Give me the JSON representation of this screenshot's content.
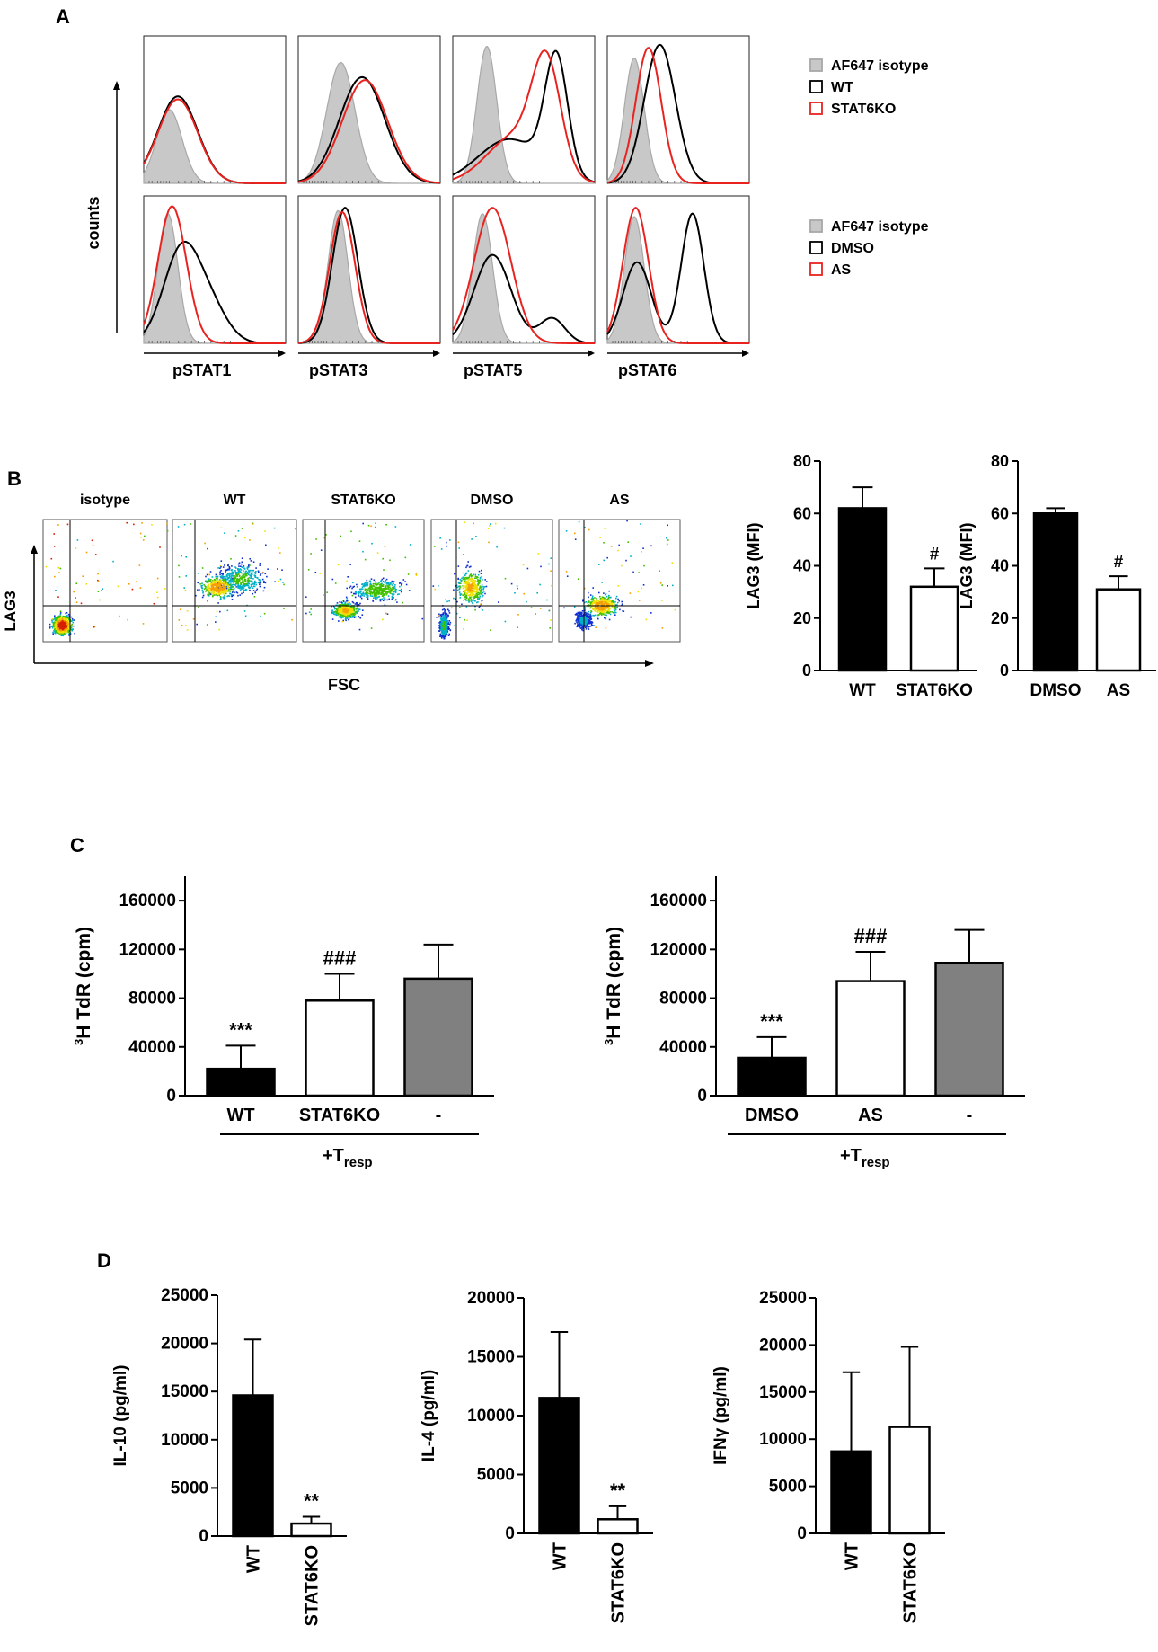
{
  "panel_letters": [
    "A",
    "B",
    "C",
    "D"
  ],
  "colors": {
    "isotype_fill": "#c8c8c8",
    "isotype_line": "#a8a8a8",
    "black": "#000000",
    "red": "#e8231f",
    "gray_bar": "#808080"
  },
  "panelA": {
    "y_label": "counts",
    "x_labels": [
      "pSTAT1",
      "pSTAT3",
      "pSTAT5",
      "pSTAT6"
    ],
    "legend_top": [
      "AF647 isotype",
      "WT",
      "STAT6KO"
    ],
    "legend_bottom": [
      "AF647 isotype",
      "DMSO",
      "AS"
    ],
    "histograms": [
      [
        {
          "iso": [
            0.18,
            0.5,
            0.09
          ],
          "black": [
            0.24,
            0.59,
            0.14
          ],
          "red": [
            0.24,
            0.57,
            0.14
          ]
        },
        {
          "iso": [
            0.3,
            0.82,
            0.1
          ],
          "black": [
            0.45,
            0.72,
            0.16
          ],
          "red": [
            0.47,
            0.7,
            0.16
          ]
        },
        {
          "iso": [
            0.24,
            0.93,
            0.07
          ],
          "black": [
            0.73,
            0.8,
            0.08,
            0.4,
            0.3,
            0.22
          ],
          "red": [
            0.66,
            0.72,
            0.1,
            0.44,
            0.32,
            0.2
          ]
        },
        {
          "iso": [
            0.19,
            0.85,
            0.07
          ],
          "black": [
            0.37,
            0.94,
            0.11
          ],
          "red": [
            0.29,
            0.92,
            0.09
          ]
        }
      ],
      [
        {
          "iso": [
            0.17,
            0.88,
            0.07
          ],
          "black": [
            0.27,
            0.64,
            0.13,
            0.48,
            0.2,
            0.12
          ],
          "red": [
            0.2,
            0.93,
            0.1
          ]
        },
        {
          "iso": [
            0.28,
            0.9,
            0.07
          ],
          "black": [
            0.33,
            0.92,
            0.09
          ],
          "red": [
            0.31,
            0.89,
            0.09
          ]
        },
        {
          "iso": [
            0.21,
            0.88,
            0.07
          ],
          "black": [
            0.28,
            0.6,
            0.13,
            0.7,
            0.17,
            0.09
          ],
          "red": [
            0.28,
            0.92,
            0.13
          ]
        },
        {
          "iso": [
            0.19,
            0.86,
            0.07
          ],
          "black": [
            0.21,
            0.55,
            0.1,
            0.6,
            0.88,
            0.08
          ],
          "red": [
            0.2,
            0.92,
            0.09
          ]
        }
      ]
    ]
  },
  "panelB": {
    "dot_titles": [
      "isotype",
      "WT",
      "STAT6KO",
      "DMSO",
      "AS"
    ],
    "y_label": "LAG3",
    "x_label": "FSC"
  },
  "chart_data": [
    {
      "type": "bar",
      "panel": "B",
      "categories": [
        "WT",
        "STAT6KO"
      ],
      "values": [
        62,
        32
      ],
      "errors": [
        8,
        7
      ],
      "annotations": [
        "",
        "#"
      ],
      "ylabel": "LAG3 (MFI)",
      "ylim": [
        0,
        80
      ],
      "yticks": [
        "0",
        "20",
        "40",
        "60",
        "80"
      ]
    },
    {
      "type": "bar",
      "panel": "B",
      "categories": [
        "DMSO",
        "AS"
      ],
      "values": [
        60,
        31
      ],
      "errors": [
        2,
        5
      ],
      "annotations": [
        "",
        "#"
      ],
      "ylabel": "LAG3 (MFI)",
      "ylim": [
        0,
        80
      ],
      "yticks": [
        "0",
        "20",
        "40",
        "60",
        "80"
      ]
    },
    {
      "type": "bar",
      "panel": "C",
      "categories": [
        "WT",
        "STAT6KO",
        "-"
      ],
      "values": [
        22000,
        78000,
        96000
      ],
      "errors": [
        19000,
        22000,
        28000
      ],
      "annotations": [
        "***",
        "###",
        ""
      ],
      "ylabel_sup": "3",
      "ylabel": "H TdR (cpm)",
      "ylim": [
        0,
        180000
      ],
      "yticks": [
        "0",
        "40000",
        "80000",
        "120000",
        "160000"
      ],
      "group_label": "+T",
      "group_sub": "resp"
    },
    {
      "type": "bar",
      "panel": "C",
      "categories": [
        "DMSO",
        "AS",
        "-"
      ],
      "values": [
        31000,
        94000,
        109000
      ],
      "errors": [
        17000,
        24000,
        27000
      ],
      "annotations": [
        "***",
        "###",
        ""
      ],
      "ylabel_sup": "3",
      "ylabel": "H TdR (cpm)",
      "ylim": [
        0,
        180000
      ],
      "yticks": [
        "0",
        "40000",
        "80000",
        "120000",
        "160000"
      ],
      "group_label": "+T",
      "group_sub": "resp"
    },
    {
      "type": "bar",
      "panel": "D",
      "categories": [
        "WT",
        "STAT6KO"
      ],
      "values": [
        14600,
        1300
      ],
      "errors": [
        5800,
        700
      ],
      "annotations": [
        "",
        "**"
      ],
      "ylabel": "IL-10 (pg/ml)",
      "ylim": [
        0,
        25000
      ],
      "yticks": [
        "0",
        "5000",
        "10000",
        "15000",
        "20000",
        "25000"
      ]
    },
    {
      "type": "bar",
      "panel": "D",
      "categories": [
        "WT",
        "STAT6KO"
      ],
      "values": [
        11500,
        1200
      ],
      "errors": [
        5600,
        1100
      ],
      "annotations": [
        "",
        "**"
      ],
      "ylabel": "IL-4 (pg/ml)",
      "ylim": [
        0,
        20000
      ],
      "yticks": [
        "0",
        "5000",
        "10000",
        "15000",
        "20000"
      ]
    },
    {
      "type": "bar",
      "panel": "D",
      "categories": [
        "WT",
        "STAT6KO"
      ],
      "values": [
        8700,
        11300
      ],
      "errors": [
        8400,
        8500
      ],
      "annotations": [
        "",
        ""
      ],
      "ylabel": "IFNγ (pg/ml)",
      "ylim": [
        0,
        25000
      ],
      "yticks": [
        "0",
        "5000",
        "10000",
        "15000",
        "20000",
        "25000"
      ]
    }
  ]
}
